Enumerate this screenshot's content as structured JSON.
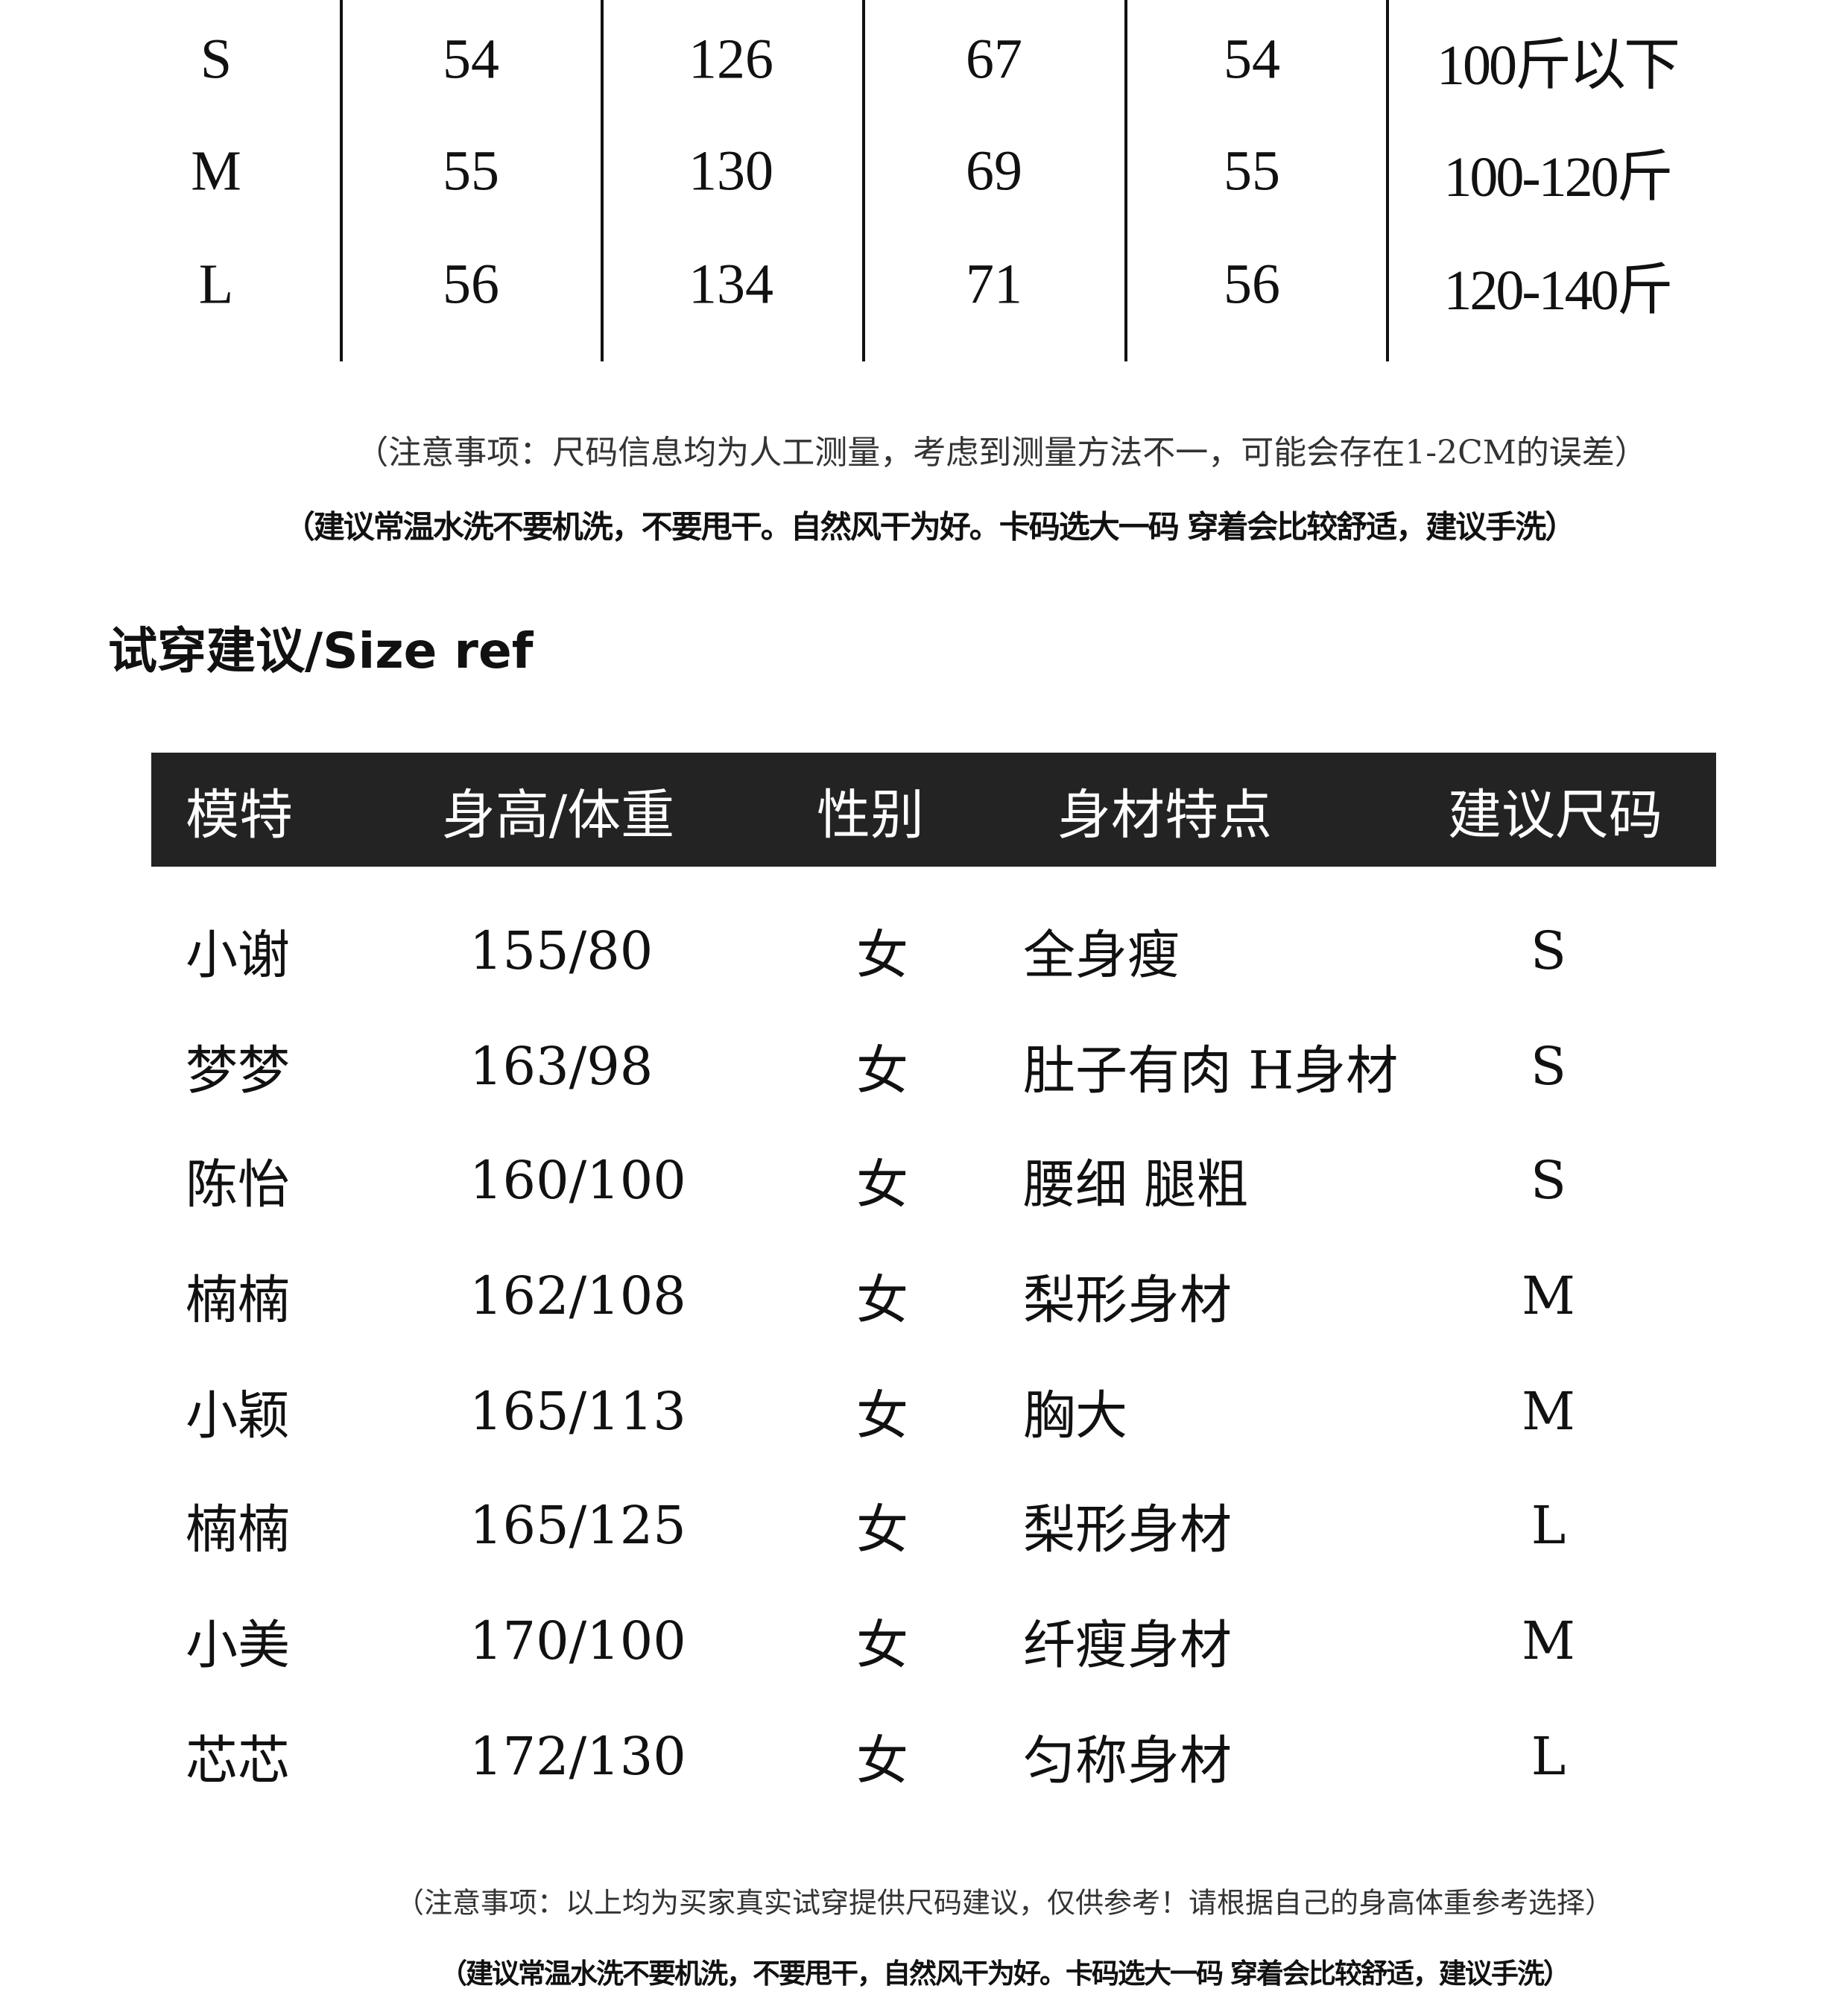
{
  "size_table": {
    "rows": [
      [
        "S",
        "54",
        "126",
        "67",
        "54",
        "100斤以下"
      ],
      [
        "M",
        "55",
        "130",
        "69",
        "55",
        "100-120斤"
      ],
      [
        "L",
        "56",
        "134",
        "71",
        "56",
        "120-140斤"
      ]
    ]
  },
  "notes_top": {
    "measure_note": "（注意事项：尺码信息均为人工测量，考虑到测量方法不一，可能会存在1-2CM的误差）",
    "wash_note": "（建议常温水洗不要机洗，不要甩干。自然风干为好。卡码选大一码 穿着会比较舒适，建议手洗）"
  },
  "section_title": "试穿建议/Size ref",
  "ref_table": {
    "header_bg": "#232323",
    "headers": [
      "模特",
      "身高/体重",
      "性别",
      "身材特点",
      "建议尺码"
    ],
    "rows": [
      [
        "小谢",
        "155/80",
        "女",
        "全身瘦",
        "S"
      ],
      [
        "梦梦",
        "163/98",
        "女",
        "肚子有肉 H身材",
        "S"
      ],
      [
        "陈怡",
        "160/100",
        "女",
        "腰细 腿粗",
        "S"
      ],
      [
        "楠楠",
        "162/108",
        "女",
        "梨形身材",
        "M"
      ],
      [
        "小颖",
        "165/113",
        "女",
        "胸大",
        "M"
      ],
      [
        "楠楠",
        "165/125",
        "女",
        "梨形身材",
        "L"
      ],
      [
        "小美",
        "170/100",
        "女",
        "纤瘦身材",
        "M"
      ],
      [
        "芯芯",
        "172/130",
        "女",
        "匀称身材",
        "L"
      ]
    ]
  },
  "notes_bottom": {
    "ref_note": "（注意事项：以上均为买家真实试穿提供尺码建议，仅供参考！请根据自己的身高体重参考选择）",
    "wash_note": "（建议常温水洗不要机洗，不要甩干，自然风干为好。卡码选大一码 穿着会比较舒适，建议手洗）"
  }
}
